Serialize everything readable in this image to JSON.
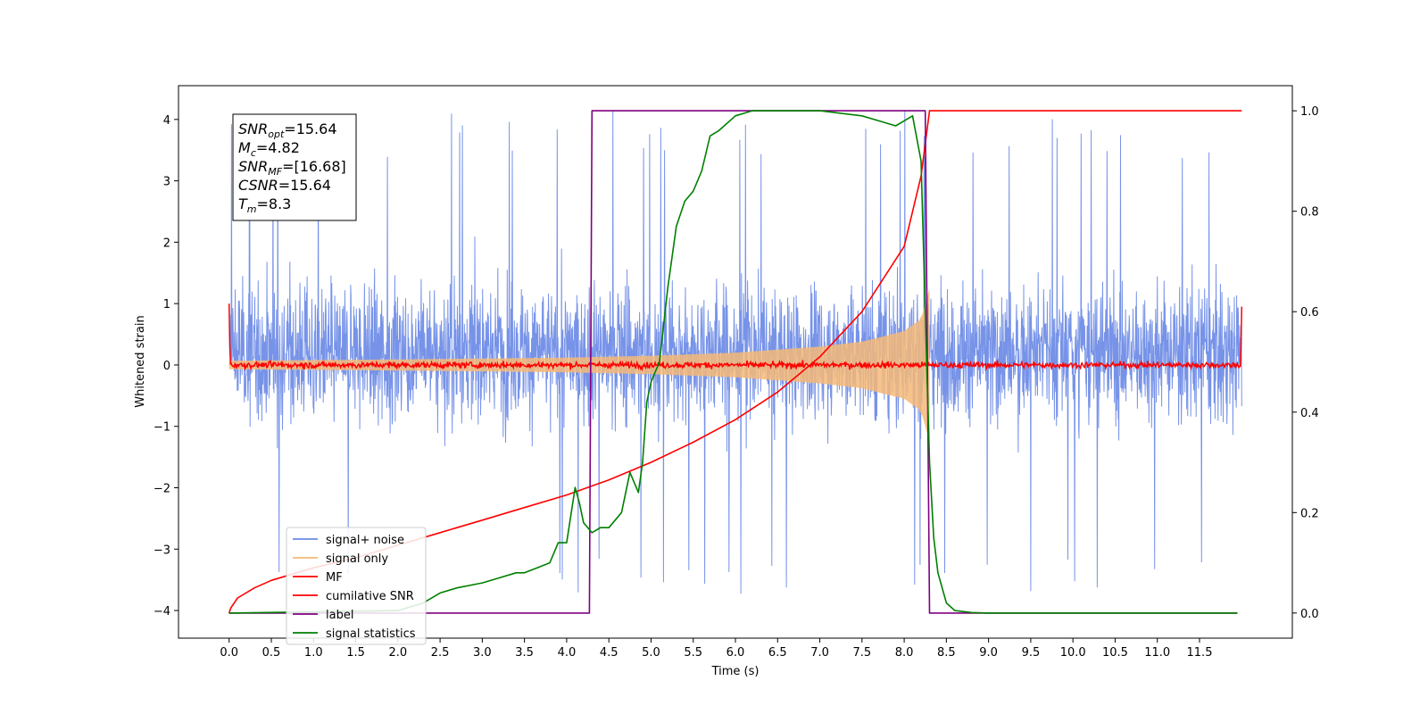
{
  "chart_data": {
    "type": "line",
    "xlabel": "Time (s)",
    "ylabel": "Whitened strain",
    "xlim": [
      -0.6,
      12.6
    ],
    "ylim": [
      -4.45,
      4.55
    ],
    "ylim_right": [
      -0.05,
      1.05
    ],
    "x_ticks": [
      "0.0",
      "0.5",
      "1.0",
      "1.5",
      "2.0",
      "2.5",
      "3.0",
      "3.5",
      "4.0",
      "4.5",
      "5.0",
      "5.5",
      "6.0",
      "6.5",
      "7.0",
      "7.5",
      "8.0",
      "8.5",
      "9.0",
      "9.5",
      "10.0",
      "10.5",
      "11.0",
      "11.5"
    ],
    "y_ticks": [
      "4",
      "3",
      "2",
      "1",
      "0",
      "−1",
      "−2",
      "−3",
      "−4"
    ],
    "y_ticks_right": [
      "1.0",
      "0.8",
      "0.6",
      "0.4",
      "0.2",
      "0.0"
    ],
    "grid": false,
    "legend_position": "lower-left",
    "annotation": {
      "lines": [
        {
          "base": "SNR",
          "sub": "opt",
          "value": "=15.64"
        },
        {
          "base": "M",
          "sub": "c",
          "value": "=4.82"
        },
        {
          "base": "SNR",
          "sub": "MF",
          "value": "=[16.68]"
        },
        {
          "base": "CSNR",
          "sub": "",
          "value": "=15.64"
        },
        {
          "base": "T",
          "sub": "m",
          "value": "=8.3"
        }
      ]
    },
    "series": [
      {
        "name": "signal+ noise",
        "color": "#6b8ae6",
        "axis": "left",
        "kind": "noise",
        "x_range": [
          0.0,
          12.0
        ],
        "typical_range": [
          -1.9,
          2.4
        ],
        "peak_max": 4.15,
        "peak_min": -3.75
      },
      {
        "name": "signal only",
        "color": "#f5b978",
        "axis": "left",
        "kind": "chirp",
        "x_range": [
          0.0,
          8.3
        ],
        "envelope_x": [
          0.0,
          2.0,
          4.0,
          5.0,
          6.0,
          7.0,
          7.5,
          8.0,
          8.2,
          8.3
        ],
        "envelope_y": [
          0.07,
          0.09,
          0.12,
          0.15,
          0.2,
          0.3,
          0.38,
          0.55,
          0.75,
          1.25
        ]
      },
      {
        "name": "MF",
        "color": "#ff0000",
        "axis": "left",
        "kind": "mf",
        "x_range": [
          0.0,
          12.0
        ],
        "noise_amplitude": 0.08,
        "edge_start": 1.0,
        "edge_end": 0.95
      },
      {
        "name": "cumilative SNR",
        "color": "#ff0000",
        "axis": "right",
        "kind": "curve",
        "x": [
          0.0,
          0.02,
          0.1,
          0.3,
          0.5,
          1.0,
          1.5,
          2.0,
          2.5,
          3.0,
          3.5,
          4.0,
          4.5,
          5.0,
          5.5,
          6.0,
          6.5,
          7.0,
          7.5,
          8.0,
          8.2,
          8.3,
          12.0
        ],
        "y": [
          0.0,
          0.01,
          0.03,
          0.05,
          0.065,
          0.09,
          0.11,
          0.135,
          0.16,
          0.185,
          0.21,
          0.235,
          0.265,
          0.3,
          0.34,
          0.385,
          0.44,
          0.51,
          0.6,
          0.73,
          0.87,
          1.0,
          1.0
        ]
      },
      {
        "name": "label",
        "color": "#800080",
        "axis": "right",
        "kind": "curve",
        "x": [
          0.0,
          4.27,
          4.3,
          8.25,
          8.3,
          11.95
        ],
        "y": [
          0.0,
          0.0,
          1.0,
          1.0,
          0.0,
          0.0
        ]
      },
      {
        "name": "signal statistics",
        "color": "#008000",
        "axis": "right",
        "kind": "curve",
        "x": [
          0.0,
          2.0,
          2.3,
          2.5,
          2.7,
          3.0,
          3.2,
          3.4,
          3.5,
          3.65,
          3.8,
          3.9,
          4.0,
          4.1,
          4.15,
          4.2,
          4.3,
          4.4,
          4.5,
          4.65,
          4.75,
          4.85,
          4.9,
          4.95,
          5.0,
          5.1,
          5.2,
          5.3,
          5.4,
          5.5,
          5.6,
          5.7,
          5.8,
          6.0,
          6.2,
          6.4,
          6.6,
          7.0,
          7.5,
          7.7,
          7.9,
          8.0,
          8.1,
          8.2,
          8.25,
          8.3,
          8.35,
          8.4,
          8.5,
          8.6,
          8.8,
          9.0,
          10.0,
          11.0,
          11.95
        ],
        "y": [
          0.0,
          0.005,
          0.02,
          0.04,
          0.05,
          0.06,
          0.07,
          0.08,
          0.08,
          0.09,
          0.1,
          0.14,
          0.14,
          0.25,
          0.22,
          0.18,
          0.16,
          0.17,
          0.17,
          0.2,
          0.28,
          0.24,
          0.3,
          0.42,
          0.46,
          0.5,
          0.65,
          0.77,
          0.82,
          0.84,
          0.88,
          0.95,
          0.96,
          0.99,
          1.0,
          1.0,
          1.0,
          1.0,
          0.99,
          0.98,
          0.97,
          0.98,
          0.99,
          0.9,
          0.6,
          0.3,
          0.15,
          0.08,
          0.02,
          0.005,
          0.001,
          0.0,
          0.0,
          0.0,
          0.0
        ]
      }
    ]
  }
}
